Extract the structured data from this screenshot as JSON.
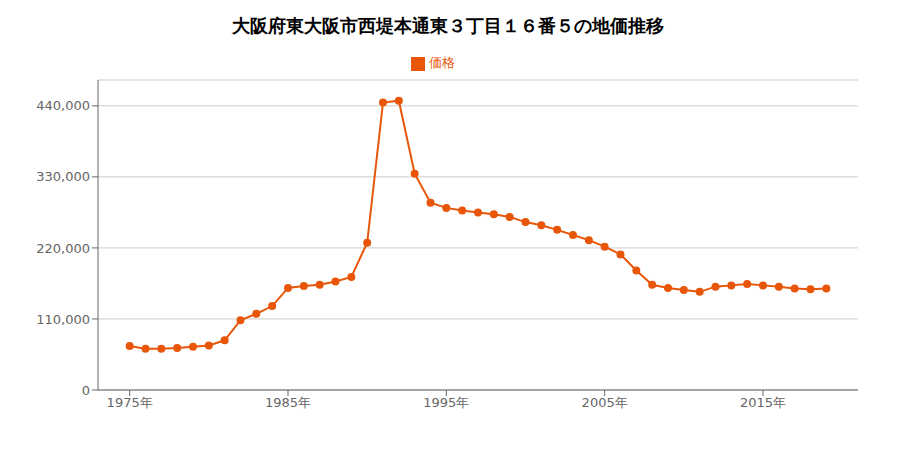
{
  "chart_data": {
    "type": "line",
    "title": "大阪府東大阪市西堤本通東３丁目１６番５の地価推移",
    "x": [
      1975,
      1976,
      1977,
      1978,
      1979,
      1980,
      1981,
      1982,
      1983,
      1984,
      1985,
      1986,
      1987,
      1988,
      1989,
      1990,
      1991,
      1992,
      1993,
      1994,
      1995,
      1996,
      1997,
      1998,
      1999,
      2000,
      2001,
      2002,
      2003,
      2004,
      2005,
      2006,
      2007,
      2008,
      2009,
      2010,
      2011,
      2012,
      2013,
      2014,
      2015,
      2016,
      2017,
      2018,
      2019
    ],
    "series": [
      {
        "name": "価格",
        "color": "#E8560A",
        "marker": "circle",
        "values": [
          68000,
          64000,
          64000,
          65000,
          67000,
          69000,
          77000,
          108000,
          118000,
          130000,
          158000,
          161000,
          163000,
          168000,
          175000,
          228000,
          445000,
          448000,
          335000,
          290000,
          282000,
          278000,
          275000,
          272000,
          268000,
          260000,
          255000,
          248000,
          240000,
          232000,
          222000,
          210000,
          185000,
          163000,
          158000,
          155000,
          152000,
          160000,
          162000,
          164000,
          162000,
          160000,
          157000,
          156000,
          157000
        ]
      }
    ],
    "xlim": [
      1973,
      2021
    ],
    "xticks": [
      {
        "value": 1975,
        "label": "1975年"
      },
      {
        "value": 1985,
        "label": "1985年"
      },
      {
        "value": 1995,
        "label": "1995年"
      },
      {
        "value": 2005,
        "label": "2005年"
      },
      {
        "value": 2015,
        "label": "2015年"
      }
    ],
    "ylim": [
      0,
      480000
    ],
    "yticks": [
      0,
      {
        "value": 110000,
        "label": "110,000"
      },
      {
        "value": 220000,
        "label": "220,000"
      },
      {
        "value": 330000,
        "label": "330,000"
      },
      {
        "value": 440000,
        "label": "440,000"
      }
    ],
    "grid": "y",
    "legend": "top"
  }
}
